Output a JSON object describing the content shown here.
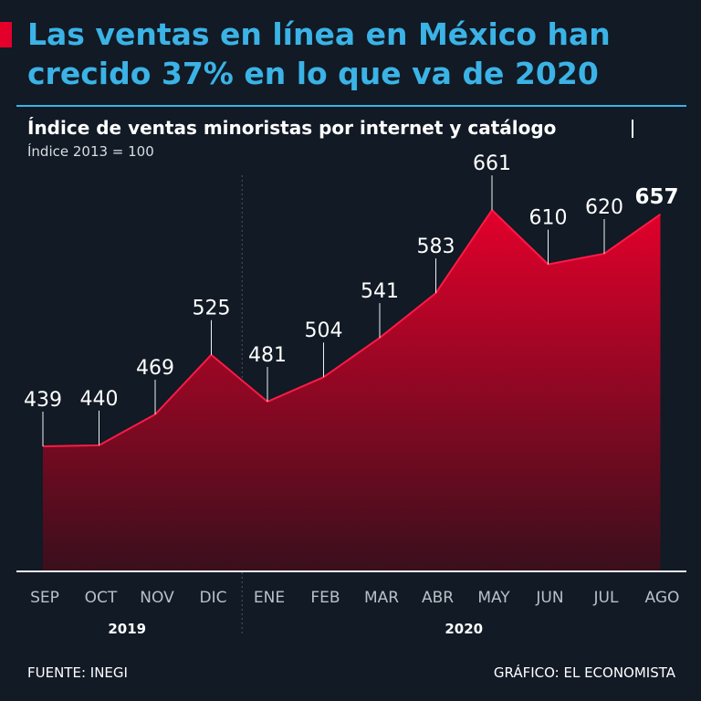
{
  "headline": "Las ventas en línea en México han crecido 37% en lo que va de 2020",
  "source": "FUENTE: INEGI",
  "credit": "GRÁFICO: EL ECONOMISTA",
  "colors": {
    "background": "#111a25",
    "headline": "#3bb3e6",
    "accent": "#e3002b",
    "area_top": "#e3002b",
    "area_bottom": "#3a0f1c"
  },
  "chart_data": {
    "type": "area",
    "title": "Índice de ventas minoristas por internet y catálogo",
    "subtitle": "Índice 2013 = 100",
    "categories": [
      "SEP",
      "OCT",
      "NOV",
      "DIC",
      "ENE",
      "FEB",
      "MAR",
      "ABR",
      "MAY",
      "JUN",
      "JUL",
      "AGO"
    ],
    "values": [
      439,
      440,
      469,
      525,
      481,
      504,
      541,
      583,
      661,
      610,
      620,
      657
    ],
    "year_groups": [
      {
        "label": "2019",
        "start": 0,
        "end": 3
      },
      {
        "label": "2020",
        "start": 4,
        "end": 11
      }
    ],
    "highlight_last": true,
    "grid": false,
    "legend": "none"
  }
}
